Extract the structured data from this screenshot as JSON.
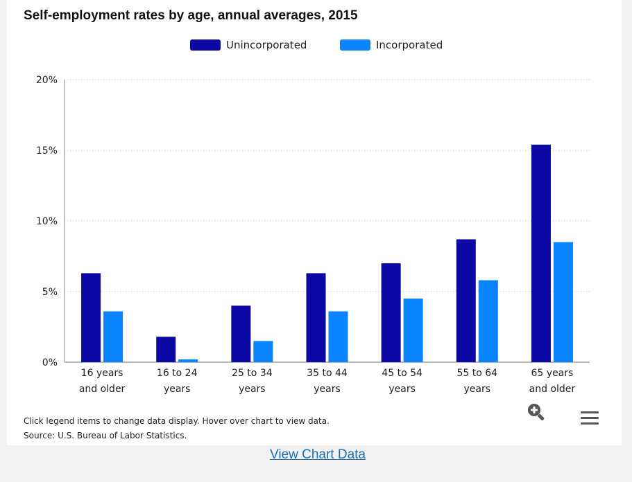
{
  "chart_data": {
    "type": "bar",
    "title": "Self-employment rates by age, annual averages, 2015",
    "categories": [
      [
        "16 years",
        "and older"
      ],
      [
        "16 to 24",
        "years"
      ],
      [
        "25 to 34",
        "years"
      ],
      [
        "35 to 44",
        "years"
      ],
      [
        "45 to 54",
        "years"
      ],
      [
        "55 to 64",
        "years"
      ],
      [
        "65 years",
        "and older"
      ]
    ],
    "series": [
      {
        "name": "Unincorporated",
        "color": "#0b08a4",
        "values": [
          6.3,
          1.8,
          4.0,
          6.3,
          7.0,
          8.7,
          15.4
        ]
      },
      {
        "name": "Incorporated",
        "color": "#0a84ff",
        "values": [
          3.6,
          0.2,
          1.5,
          3.6,
          4.5,
          5.8,
          8.5
        ]
      }
    ],
    "ylim": [
      0,
      20
    ],
    "yticks": [
      0,
      5,
      10,
      15,
      20
    ],
    "ytick_labels": [
      "0%",
      "5%",
      "10%",
      "15%",
      "20%"
    ],
    "xlabel": "",
    "ylabel": "",
    "grid": "horizontal-dotted",
    "legend_position": "top-center"
  },
  "footer": {
    "note_line1": "Click legend items to change data display. Hover over chart to view data.",
    "note_line2": "Source: U.S. Bureau of Labor Statistics."
  },
  "link": {
    "label": "View Chart Data"
  },
  "icons": {
    "zoom": "zoom-in-icon",
    "menu": "hamburger-menu-icon"
  }
}
